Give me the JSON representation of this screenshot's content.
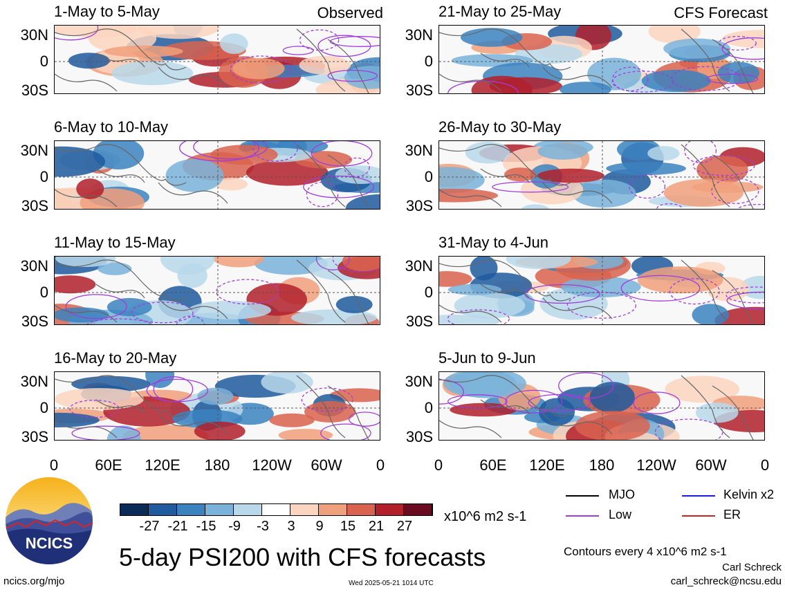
{
  "panels": [
    {
      "title": "1-May to 5-May",
      "tag": "Observed",
      "seed": 1
    },
    {
      "title": "6-May to 10-May",
      "tag": "",
      "seed": 2
    },
    {
      "title": "11-May to 15-May",
      "tag": "",
      "seed": 3
    },
    {
      "title": "16-May to 20-May",
      "tag": "",
      "seed": 4
    },
    {
      "title": "21-May to 25-May",
      "tag": "CFS Forecast",
      "seed": 5
    },
    {
      "title": "26-May to 30-May",
      "tag": "",
      "seed": 6
    },
    {
      "title": "31-May to 4-Jun",
      "tag": "",
      "seed": 7
    },
    {
      "title": "5-Jun to 9-Jun",
      "tag": "",
      "seed": 8
    }
  ],
  "lat_labels": [
    "30N",
    "0",
    "30S"
  ],
  "lon_labels": [
    "0",
    "60E",
    "120E",
    "180",
    "120W",
    "60W",
    "0"
  ],
  "colorbar": {
    "labels": [
      "-27",
      "-21",
      "-15",
      "-9",
      "-3",
      "3",
      "9",
      "15",
      "21",
      "27"
    ],
    "colors": [
      "#0b2b57",
      "#1f5b9e",
      "#3b83c0",
      "#7ab3d9",
      "#b9d8ea",
      "#ffffff",
      "#fbd5c0",
      "#f1a07c",
      "#d9634f",
      "#b2202c",
      "#6a0b22"
    ],
    "units": "x10^6 m2 s-1"
  },
  "legend": [
    {
      "label": "MJO",
      "color": "#000000"
    },
    {
      "label": "Kelvin x2",
      "color": "#1a1adc"
    },
    {
      "label": "Low",
      "color": "#a03cdc"
    },
    {
      "label": "ER",
      "color": "#cc2222"
    }
  ],
  "title": "5-day PSI200 with CFS forecasts",
  "contour_note": "Contours every 4 x10^6 m2 s-1",
  "author": "Carl Schreck",
  "email": "carl_schreck@ncsu.edu",
  "url": "ncics.org/mjo",
  "timestamp": "Wed 2025-05-21 1014 UTC",
  "logo_text": "NCICS"
}
